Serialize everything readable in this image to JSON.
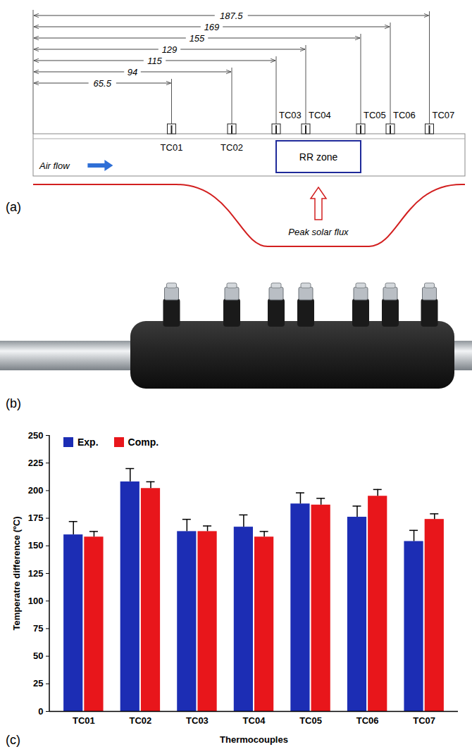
{
  "diagram": {
    "label": "(a)",
    "dimensions": [
      65.5,
      94,
      115,
      129,
      155,
      169,
      187.5
    ],
    "thermocouples": [
      "TC01",
      "TC02",
      "TC03",
      "TC04",
      "TC05",
      "TC06",
      "TC07"
    ],
    "flow_label": "Air flow",
    "zone_label": "RR zone",
    "flux_label": "Peak solar flux"
  },
  "photo": {
    "label": "(b)"
  },
  "chart_panel_label": "(c)",
  "chart_data": {
    "type": "bar",
    "categories": [
      "TC01",
      "TC02",
      "TC03",
      "TC04",
      "TC05",
      "TC06",
      "TC07"
    ],
    "series": [
      {
        "name": "Exp.",
        "color": "#1c2db4",
        "values": [
          160,
          208,
          163,
          167,
          188,
          176,
          154
        ],
        "errors": [
          12,
          12,
          11,
          11,
          10,
          10,
          10
        ]
      },
      {
        "name": "Comp.",
        "color": "#e8161b",
        "values": [
          158,
          202,
          163,
          158,
          187,
          195,
          174
        ],
        "errors": [
          5,
          6,
          5,
          5,
          6,
          6,
          5
        ]
      }
    ],
    "xlabel": "Thermocouples",
    "ylabel": "Temperatre difference (ºC)",
    "ylim": [
      0,
      250
    ],
    "yticks": [
      0,
      25,
      50,
      75,
      100,
      125,
      150,
      175,
      200,
      225,
      250
    ],
    "legend": "top-left",
    "grid": false
  }
}
